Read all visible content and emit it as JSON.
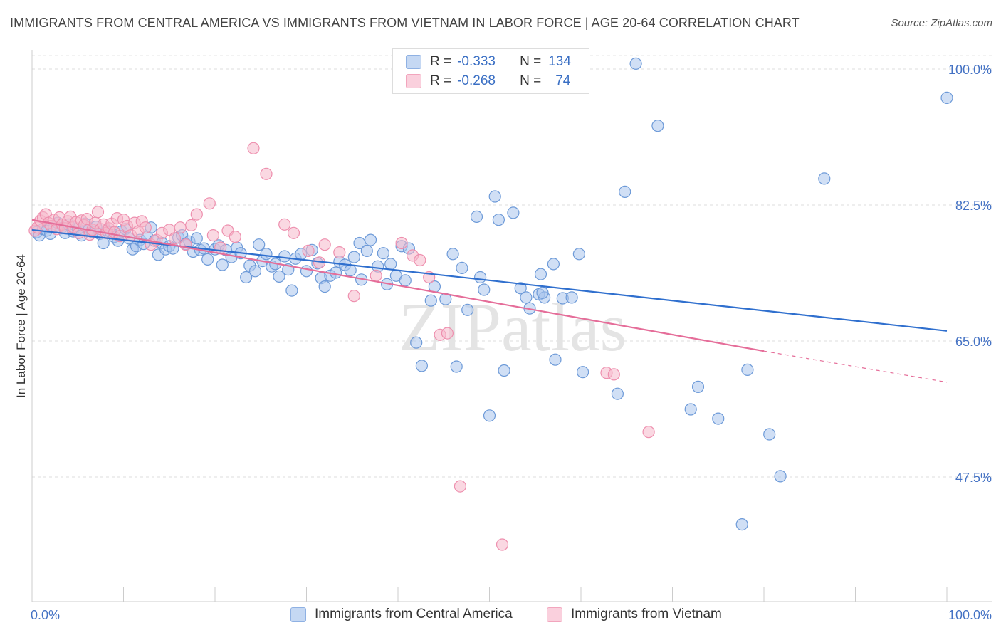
{
  "title": "IMMIGRANTS FROM CENTRAL AMERICA VS IMMIGRANTS FROM VIETNAM IN LABOR FORCE | AGE 20-64 CORRELATION CHART",
  "source": "Source: ZipAtlas.com",
  "watermark": "ZIPatlas",
  "colors": {
    "blue_fill": "#a9c4ec",
    "blue_stroke": "#6d9ad8",
    "blue_line": "#2f6fce",
    "pink_fill": "#f6b8cb",
    "pink_stroke": "#ee8fae",
    "pink_line": "#e56d99",
    "tick_text": "#4472c4",
    "grid": "#dddddd"
  },
  "legend": {
    "rows": [
      {
        "r_label": "R =",
        "r_value": "-0.333",
        "n_label": "N =",
        "n_value": "134"
      },
      {
        "r_label": "R =",
        "r_value": "-0.268",
        "n_label": "N =",
        "n_value": "74"
      }
    ]
  },
  "chart_data": {
    "type": "scatter",
    "title": "IMMIGRANTS FROM CENTRAL AMERICA VS IMMIGRANTS FROM VIETNAM IN LABOR FORCE | AGE 20-64 CORRELATION CHART",
    "xlabel": "",
    "ylabel": "In Labor Force | Age 20-64",
    "xlim": [
      0,
      100
    ],
    "ylim": [
      31,
      102
    ],
    "x_tick_labels": [
      "0.0%",
      "100.0%"
    ],
    "y_ticks": [
      {
        "value": 100.0,
        "label": "100.0%"
      },
      {
        "value": 82.5,
        "label": "82.5%"
      },
      {
        "value": 65.0,
        "label": "65.0%"
      },
      {
        "value": 47.5,
        "label": "47.5%"
      }
    ],
    "grid": true,
    "legend_position": "top-center",
    "series": [
      {
        "name": "Immigrants from Central America",
        "color": "#a9c4ec",
        "trend": {
          "x0": 0,
          "y0": 79.3,
          "x1": 100,
          "y1": 66.3
        },
        "points": [
          [
            0.5,
            79.0
          ],
          [
            0.8,
            78.6
          ],
          [
            1.2,
            79.4
          ],
          [
            1.6,
            79.2
          ],
          [
            2.0,
            78.8
          ],
          [
            2.4,
            79.6
          ],
          [
            2.8,
            80.2
          ],
          [
            3.2,
            79.5
          ],
          [
            3.6,
            78.9
          ],
          [
            4.0,
            80.0
          ],
          [
            4.5,
            79.1
          ],
          [
            5.0,
            79.4
          ],
          [
            5.4,
            78.6
          ],
          [
            5.8,
            80.1
          ],
          [
            6.2,
            79.3
          ],
          [
            6.6,
            79.0
          ],
          [
            7.0,
            79.7
          ],
          [
            7.4,
            78.8
          ],
          [
            7.8,
            77.6
          ],
          [
            8.2,
            79.2
          ],
          [
            8.6,
            79.0
          ],
          [
            9.0,
            78.4
          ],
          [
            9.4,
            77.9
          ],
          [
            9.8,
            79.1
          ],
          [
            10.2,
            79.4
          ],
          [
            10.6,
            78.2
          ],
          [
            11.0,
            76.8
          ],
          [
            11.4,
            77.2
          ],
          [
            11.8,
            78.0
          ],
          [
            12.2,
            77.5
          ],
          [
            12.6,
            78.4
          ],
          [
            13.0,
            79.6
          ],
          [
            13.4,
            77.9
          ],
          [
            13.8,
            76.1
          ],
          [
            14.2,
            77.6
          ],
          [
            14.6,
            76.8
          ],
          [
            15.0,
            77.2
          ],
          [
            15.4,
            76.9
          ],
          [
            16.0,
            78.3
          ],
          [
            16.4,
            78.6
          ],
          [
            16.8,
            77.5
          ],
          [
            17.2,
            77.8
          ],
          [
            17.6,
            76.5
          ],
          [
            18.0,
            78.2
          ],
          [
            18.4,
            76.7
          ],
          [
            18.8,
            76.9
          ],
          [
            19.2,
            75.5
          ],
          [
            20.0,
            76.8
          ],
          [
            20.4,
            77.3
          ],
          [
            20.8,
            74.8
          ],
          [
            21.2,
            76.7
          ],
          [
            21.8,
            75.8
          ],
          [
            22.4,
            77.0
          ],
          [
            22.8,
            76.3
          ],
          [
            23.4,
            73.2
          ],
          [
            23.8,
            74.7
          ],
          [
            24.4,
            74.0
          ],
          [
            24.8,
            77.4
          ],
          [
            25.2,
            75.3
          ],
          [
            25.6,
            76.2
          ],
          [
            26.2,
            74.6
          ],
          [
            26.6,
            74.9
          ],
          [
            27.0,
            73.3
          ],
          [
            27.6,
            75.9
          ],
          [
            28.0,
            74.2
          ],
          [
            28.4,
            71.5
          ],
          [
            28.8,
            75.6
          ],
          [
            29.4,
            76.2
          ],
          [
            30.0,
            74.0
          ],
          [
            30.6,
            76.7
          ],
          [
            31.2,
            75.0
          ],
          [
            31.6,
            73.1
          ],
          [
            32.0,
            72.0
          ],
          [
            32.6,
            73.4
          ],
          [
            33.2,
            73.8
          ],
          [
            33.6,
            75.2
          ],
          [
            34.2,
            74.8
          ],
          [
            34.8,
            74.1
          ],
          [
            35.2,
            75.8
          ],
          [
            35.8,
            77.6
          ],
          [
            36.0,
            72.9
          ],
          [
            36.6,
            76.6
          ],
          [
            37.0,
            78.0
          ],
          [
            37.8,
            74.6
          ],
          [
            38.4,
            76.3
          ],
          [
            38.8,
            72.3
          ],
          [
            39.2,
            74.9
          ],
          [
            39.8,
            73.4
          ],
          [
            40.4,
            77.2
          ],
          [
            40.8,
            72.8
          ],
          [
            41.2,
            76.9
          ],
          [
            42.0,
            64.8
          ],
          [
            42.6,
            61.8
          ],
          [
            43.6,
            70.2
          ],
          [
            44.0,
            72.0
          ],
          [
            45.2,
            70.4
          ],
          [
            46.0,
            76.2
          ],
          [
            46.4,
            61.7
          ],
          [
            47.0,
            74.4
          ],
          [
            47.6,
            69.0
          ],
          [
            48.6,
            81.0
          ],
          [
            49.0,
            73.2
          ],
          [
            49.4,
            71.6
          ],
          [
            50.0,
            55.4
          ],
          [
            50.6,
            83.6
          ],
          [
            51.0,
            80.6
          ],
          [
            51.6,
            61.2
          ],
          [
            52.6,
            81.5
          ],
          [
            53.4,
            71.8
          ],
          [
            54.0,
            70.6
          ],
          [
            54.4,
            69.2
          ],
          [
            55.4,
            71.0
          ],
          [
            56.0,
            70.6
          ],
          [
            55.6,
            73.6
          ],
          [
            55.8,
            71.2
          ],
          [
            57.0,
            74.9
          ],
          [
            57.2,
            62.6
          ],
          [
            59.8,
            76.2
          ],
          [
            58.0,
            70.5
          ],
          [
            59.0,
            70.6
          ],
          [
            60.2,
            61.0
          ],
          [
            64.8,
            84.2
          ],
          [
            64.0,
            58.2
          ],
          [
            66.0,
            100.7
          ],
          [
            68.4,
            92.7
          ],
          [
            72.0,
            56.2
          ],
          [
            75.0,
            55.0
          ],
          [
            72.8,
            59.1
          ],
          [
            78.2,
            61.3
          ],
          [
            80.6,
            53.0
          ],
          [
            77.6,
            41.4
          ],
          [
            81.8,
            47.6
          ],
          [
            86.6,
            85.9
          ],
          [
            100.0,
            96.3
          ]
        ]
      },
      {
        "name": "Immigrants from Vietnam",
        "color": "#f6b8cb",
        "trend": {
          "x0": 0,
          "y0": 80.6,
          "x1": 80,
          "y1": 63.7
        },
        "trend_dashed_to": {
          "x": 100,
          "y": 59.7
        },
        "points": [
          [
            0.3,
            79.2
          ],
          [
            0.6,
            79.6
          ],
          [
            0.9,
            80.5
          ],
          [
            1.2,
            80.9
          ],
          [
            1.5,
            81.3
          ],
          [
            1.8,
            80.2
          ],
          [
            2.1,
            79.8
          ],
          [
            2.4,
            80.6
          ],
          [
            2.7,
            79.4
          ],
          [
            3.0,
            80.9
          ],
          [
            3.3,
            80.0
          ],
          [
            3.6,
            79.5
          ],
          [
            3.9,
            80.4
          ],
          [
            4.2,
            81.0
          ],
          [
            4.5,
            79.7
          ],
          [
            4.8,
            80.3
          ],
          [
            5.1,
            78.9
          ],
          [
            5.4,
            80.5
          ],
          [
            5.7,
            79.9
          ],
          [
            6.0,
            80.7
          ],
          [
            6.3,
            78.7
          ],
          [
            6.6,
            79.3
          ],
          [
            6.9,
            80.2
          ],
          [
            7.2,
            81.6
          ],
          [
            7.5,
            79.4
          ],
          [
            7.8,
            80.0
          ],
          [
            8.1,
            78.9
          ],
          [
            8.4,
            79.5
          ],
          [
            8.7,
            80.1
          ],
          [
            9.0,
            79.0
          ],
          [
            9.3,
            80.8
          ],
          [
            9.6,
            78.5
          ],
          [
            10.0,
            80.6
          ],
          [
            10.4,
            79.8
          ],
          [
            10.8,
            78.6
          ],
          [
            11.2,
            80.2
          ],
          [
            11.6,
            79.1
          ],
          [
            12.0,
            80.4
          ],
          [
            12.4,
            79.6
          ],
          [
            13.0,
            77.4
          ],
          [
            13.6,
            78.0
          ],
          [
            14.2,
            78.9
          ],
          [
            15.0,
            79.3
          ],
          [
            15.6,
            78.2
          ],
          [
            16.2,
            79.6
          ],
          [
            16.8,
            77.4
          ],
          [
            17.4,
            79.9
          ],
          [
            18.0,
            81.3
          ],
          [
            19.4,
            82.7
          ],
          [
            19.8,
            78.6
          ],
          [
            20.6,
            77.0
          ],
          [
            21.4,
            79.2
          ],
          [
            22.2,
            78.4
          ],
          [
            24.2,
            89.8
          ],
          [
            25.6,
            86.5
          ],
          [
            27.6,
            80.0
          ],
          [
            28.6,
            78.9
          ],
          [
            30.2,
            76.6
          ],
          [
            31.4,
            75.1
          ],
          [
            32.0,
            77.4
          ],
          [
            33.6,
            76.4
          ],
          [
            35.2,
            70.8
          ],
          [
            37.6,
            73.4
          ],
          [
            40.4,
            77.6
          ],
          [
            41.6,
            76.0
          ],
          [
            42.4,
            75.4
          ],
          [
            43.4,
            73.2
          ],
          [
            44.6,
            65.8
          ],
          [
            45.4,
            66.0
          ],
          [
            46.8,
            46.3
          ],
          [
            51.4,
            38.8
          ],
          [
            62.8,
            60.9
          ],
          [
            63.6,
            60.7
          ],
          [
            67.4,
            53.3
          ]
        ]
      }
    ]
  },
  "bottom_legend": {
    "series1_label": "Immigrants from Central America",
    "series2_label": "Immigrants from Vietnam"
  },
  "axis": {
    "x_min_label": "0.0%",
    "x_max_label": "100.0%",
    "y_title": "In Labor Force | Age 20-64"
  }
}
